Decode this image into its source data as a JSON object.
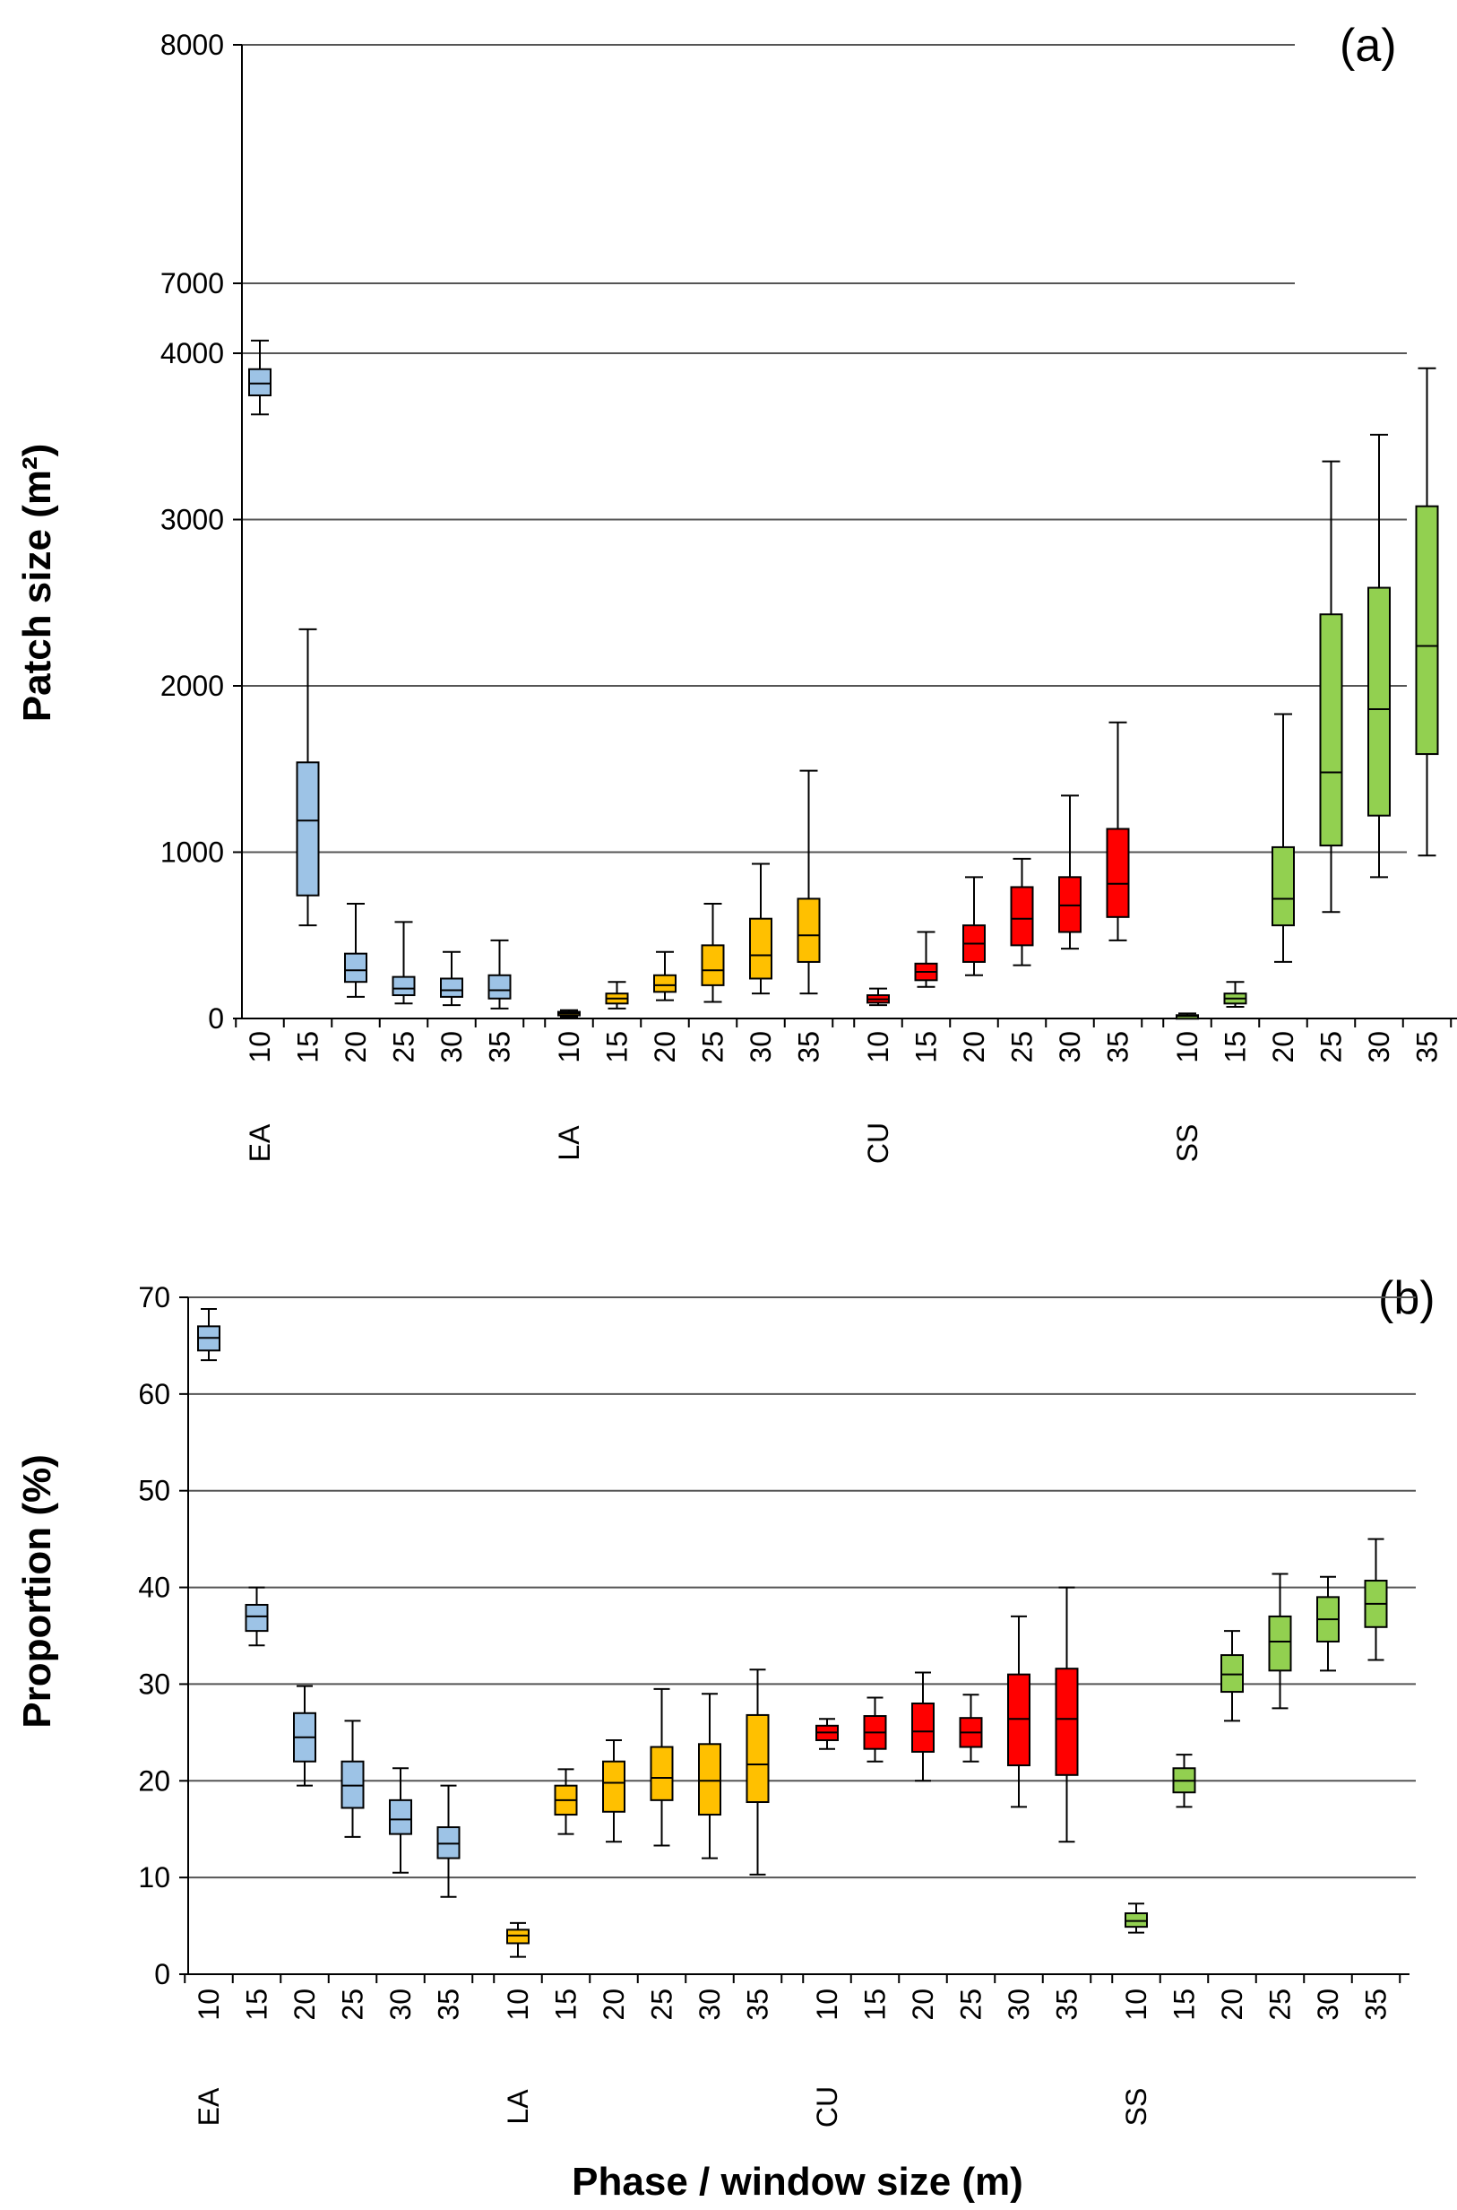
{
  "chart_data": [
    {
      "type": "boxplot",
      "panel_label": "(a)",
      "ylabel": "Patch size (m²)",
      "xlabel": "",
      "axis_break": true,
      "upper_ylim": [
        6400,
        8000
      ],
      "upper_yticks": [
        7000,
        8000
      ],
      "ylim": [
        0,
        4000
      ],
      "yticks": [
        0,
        1000,
        2000,
        3000,
        4000
      ],
      "grid": true,
      "window_sizes": [
        "10",
        "15",
        "20",
        "25",
        "30",
        "35"
      ],
      "phases": [
        {
          "name": "EA",
          "color": "#9DC3E6",
          "boxes": [
            {
              "whisker_low": 6450,
              "q1": 6530,
              "median": 6580,
              "q3": 6640,
              "whisker_high": 6760
            },
            {
              "whisker_low": 560,
              "q1": 740,
              "median": 1190,
              "q3": 1540,
              "whisker_high": 2340
            },
            {
              "whisker_low": 130,
              "q1": 220,
              "median": 290,
              "q3": 390,
              "whisker_high": 690
            },
            {
              "whisker_low": 90,
              "q1": 140,
              "median": 180,
              "q3": 250,
              "whisker_high": 580
            },
            {
              "whisker_low": 80,
              "q1": 130,
              "median": 170,
              "q3": 240,
              "whisker_high": 400
            },
            {
              "whisker_low": 60,
              "q1": 120,
              "median": 170,
              "q3": 260,
              "whisker_high": 470
            }
          ]
        },
        {
          "name": "LA",
          "color": "#FFC000",
          "boxes": [
            {
              "whisker_low": 10,
              "q1": 20,
              "median": 30,
              "q3": 40,
              "whisker_high": 50
            },
            {
              "whisker_low": 60,
              "q1": 90,
              "median": 120,
              "q3": 150,
              "whisker_high": 220
            },
            {
              "whisker_low": 110,
              "q1": 160,
              "median": 200,
              "q3": 260,
              "whisker_high": 400
            },
            {
              "whisker_low": 100,
              "q1": 200,
              "median": 290,
              "q3": 440,
              "whisker_high": 690
            },
            {
              "whisker_low": 150,
              "q1": 240,
              "median": 380,
              "q3": 600,
              "whisker_high": 930
            },
            {
              "whisker_low": 150,
              "q1": 340,
              "median": 500,
              "q3": 720,
              "whisker_high": 1490
            }
          ]
        },
        {
          "name": "CU",
          "color": "#FF0000",
          "boxes": [
            {
              "whisker_low": 80,
              "q1": 95,
              "median": 115,
              "q3": 140,
              "whisker_high": 180
            },
            {
              "whisker_low": 190,
              "q1": 230,
              "median": 280,
              "q3": 330,
              "whisker_high": 520
            },
            {
              "whisker_low": 260,
              "q1": 340,
              "median": 450,
              "q3": 560,
              "whisker_high": 850
            },
            {
              "whisker_low": 320,
              "q1": 440,
              "median": 600,
              "q3": 790,
              "whisker_high": 960
            },
            {
              "whisker_low": 420,
              "q1": 520,
              "median": 680,
              "q3": 850,
              "whisker_high": 1340
            },
            {
              "whisker_low": 470,
              "q1": 610,
              "median": 810,
              "q3": 1140,
              "whisker_high": 1780
            }
          ]
        },
        {
          "name": "SS",
          "color": "#92D050",
          "boxes": [
            {
              "whisker_low": 5,
              "q1": 10,
              "median": 15,
              "q3": 20,
              "whisker_high": 30
            },
            {
              "whisker_low": 70,
              "q1": 90,
              "median": 120,
              "q3": 150,
              "whisker_high": 220
            },
            {
              "whisker_low": 340,
              "q1": 560,
              "median": 720,
              "q3": 1030,
              "whisker_high": 1830
            },
            {
              "whisker_low": 640,
              "q1": 1040,
              "median": 1480,
              "q3": 2430,
              "whisker_high": 3350
            },
            {
              "whisker_low": 850,
              "q1": 1220,
              "median": 1860,
              "q3": 2590,
              "whisker_high": 3510
            },
            {
              "whisker_low": 980,
              "q1": 1590,
              "median": 2240,
              "q3": 3080,
              "whisker_high": 3910
            }
          ]
        }
      ]
    },
    {
      "type": "boxplot",
      "panel_label": "(b)",
      "ylabel": "Proportion (%)",
      "xlabel": "Phase / window size (m)",
      "ylim": [
        0,
        70
      ],
      "yticks": [
        0,
        10,
        20,
        30,
        40,
        50,
        60,
        70
      ],
      "grid": true,
      "window_sizes": [
        "10",
        "15",
        "20",
        "25",
        "30",
        "35"
      ],
      "phases": [
        {
          "name": "EA",
          "color": "#9DC3E6",
          "boxes": [
            {
              "whisker_low": 63.5,
              "q1": 64.5,
              "median": 65.8,
              "q3": 67.0,
              "whisker_high": 68.8
            },
            {
              "whisker_low": 34.0,
              "q1": 35.5,
              "median": 37.0,
              "q3": 38.2,
              "whisker_high": 40.0
            },
            {
              "whisker_low": 19.5,
              "q1": 22.0,
              "median": 24.5,
              "q3": 27.0,
              "whisker_high": 29.8
            },
            {
              "whisker_low": 14.2,
              "q1": 17.2,
              "median": 19.5,
              "q3": 22.0,
              "whisker_high": 26.2
            },
            {
              "whisker_low": 10.5,
              "q1": 14.5,
              "median": 16.0,
              "q3": 18.0,
              "whisker_high": 21.3
            },
            {
              "whisker_low": 8.0,
              "q1": 12.0,
              "median": 13.5,
              "q3": 15.2,
              "whisker_high": 19.5
            }
          ]
        },
        {
          "name": "LA",
          "color": "#FFC000",
          "boxes": [
            {
              "whisker_low": 1.8,
              "q1": 3.2,
              "median": 4.0,
              "q3": 4.6,
              "whisker_high": 5.3
            },
            {
              "whisker_low": 14.5,
              "q1": 16.5,
              "median": 18.0,
              "q3": 19.5,
              "whisker_high": 21.2
            },
            {
              "whisker_low": 13.7,
              "q1": 16.8,
              "median": 19.8,
              "q3": 22.0,
              "whisker_high": 24.2
            },
            {
              "whisker_low": 13.3,
              "q1": 18.0,
              "median": 20.3,
              "q3": 23.5,
              "whisker_high": 29.5
            },
            {
              "whisker_low": 12.0,
              "q1": 16.5,
              "median": 20.0,
              "q3": 23.8,
              "whisker_high": 29.0
            },
            {
              "whisker_low": 10.3,
              "q1": 17.8,
              "median": 21.7,
              "q3": 26.8,
              "whisker_high": 31.5
            }
          ]
        },
        {
          "name": "CU",
          "color": "#FF0000",
          "boxes": [
            {
              "whisker_low": 23.3,
              "q1": 24.2,
              "median": 25.0,
              "q3": 25.7,
              "whisker_high": 26.4
            },
            {
              "whisker_low": 22.0,
              "q1": 23.3,
              "median": 25.0,
              "q3": 26.7,
              "whisker_high": 28.6
            },
            {
              "whisker_low": 20.0,
              "q1": 23.0,
              "median": 25.1,
              "q3": 28.0,
              "whisker_high": 31.2
            },
            {
              "whisker_low": 22.0,
              "q1": 23.5,
              "median": 25.0,
              "q3": 26.5,
              "whisker_high": 28.9
            },
            {
              "whisker_low": 17.3,
              "q1": 21.6,
              "median": 26.4,
              "q3": 31.0,
              "whisker_high": 37.0
            },
            {
              "whisker_low": 13.7,
              "q1": 20.6,
              "median": 26.4,
              "q3": 31.6,
              "whisker_high": 40.0
            }
          ]
        },
        {
          "name": "SS",
          "color": "#92D050",
          "boxes": [
            {
              "whisker_low": 4.3,
              "q1": 4.9,
              "median": 5.5,
              "q3": 6.3,
              "whisker_high": 7.3
            },
            {
              "whisker_low": 17.3,
              "q1": 18.8,
              "median": 20.0,
              "q3": 21.3,
              "whisker_high": 22.7
            },
            {
              "whisker_low": 26.2,
              "q1": 29.2,
              "median": 31.0,
              "q3": 33.0,
              "whisker_high": 35.5
            },
            {
              "whisker_low": 27.5,
              "q1": 31.4,
              "median": 34.4,
              "q3": 37.0,
              "whisker_high": 41.4
            },
            {
              "whisker_low": 31.4,
              "q1": 34.4,
              "median": 36.7,
              "q3": 39.0,
              "whisker_high": 41.1
            },
            {
              "whisker_low": 32.5,
              "q1": 35.9,
              "median": 38.3,
              "q3": 40.7,
              "whisker_high": 45.0
            }
          ]
        }
      ]
    }
  ]
}
